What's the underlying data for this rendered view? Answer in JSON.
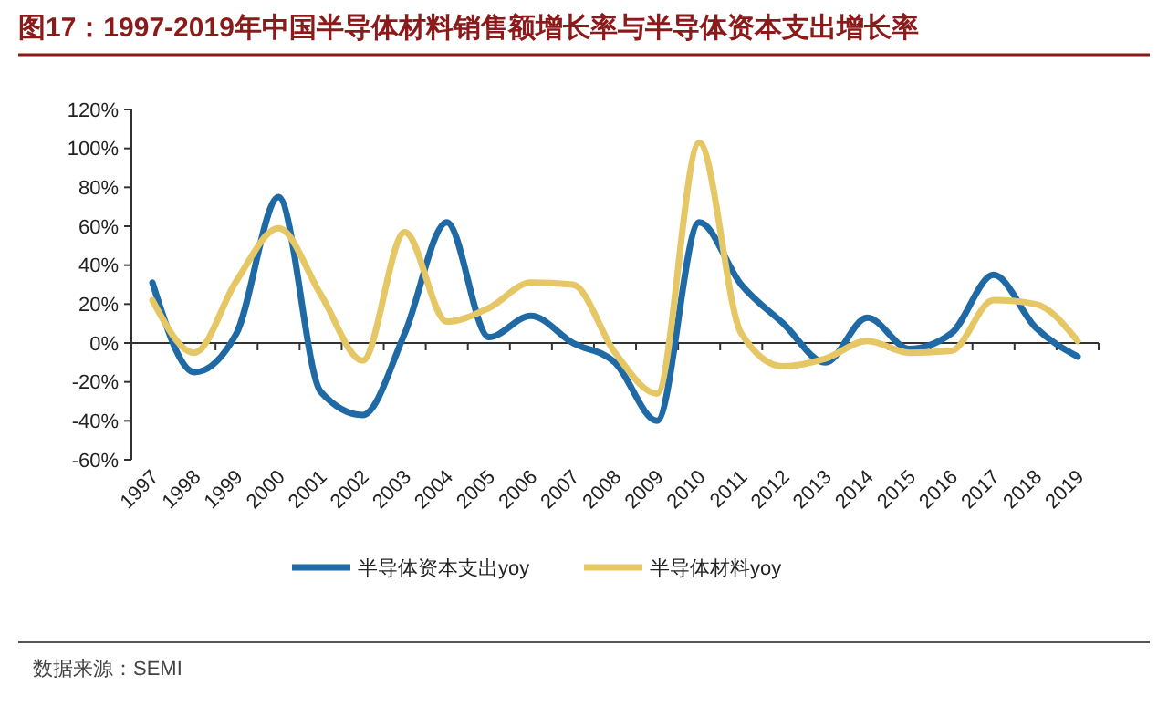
{
  "chart_data": {
    "type": "line",
    "title": "图17：1997-2019年中国半导体材料销售额增长率与半导体资本支出增长率",
    "categories": [
      "1997",
      "1998",
      "1999",
      "2000",
      "2001",
      "2002",
      "2003",
      "2004",
      "2005",
      "2006",
      "2007",
      "2008",
      "2009",
      "2010",
      "2011",
      "2012",
      "2013",
      "2014",
      "2015",
      "2016",
      "2017",
      "2018",
      "2019"
    ],
    "series": [
      {
        "name": "半导体资本支出yoy",
        "color": "#1f6aa5",
        "values": [
          31,
          -15,
          5,
          75,
          -25,
          -37,
          5,
          62,
          3,
          14,
          0,
          -10,
          -40,
          62,
          30,
          10,
          -10,
          13,
          -3,
          5,
          35,
          8,
          -7
        ]
      },
      {
        "name": "半导体材料yoy",
        "color": "#e6c766",
        "values": [
          22,
          -5,
          32,
          59,
          25,
          -9,
          57,
          11,
          18,
          31,
          30,
          -5,
          -26,
          103,
          5,
          -12,
          -8,
          1,
          -5,
          -4,
          22,
          20,
          1
        ]
      }
    ],
    "ylim": [
      -60,
      120
    ],
    "yticks": [
      {
        "value": -60,
        "label": "-60%"
      },
      {
        "value": -40,
        "label": "-40%"
      },
      {
        "value": -20,
        "label": "-20%"
      },
      {
        "value": 0,
        "label": "0%"
      },
      {
        "value": 20,
        "label": "20%"
      },
      {
        "value": 40,
        "label": "40%"
      },
      {
        "value": 60,
        "label": "60%"
      },
      {
        "value": 80,
        "label": "80%"
      },
      {
        "value": 100,
        "label": "100%"
      },
      {
        "value": 120,
        "label": "120%"
      }
    ],
    "legend": "bottom",
    "marker": "none",
    "line_style": "solid",
    "annotations": [
      "数据来源：SEMI"
    ]
  }
}
